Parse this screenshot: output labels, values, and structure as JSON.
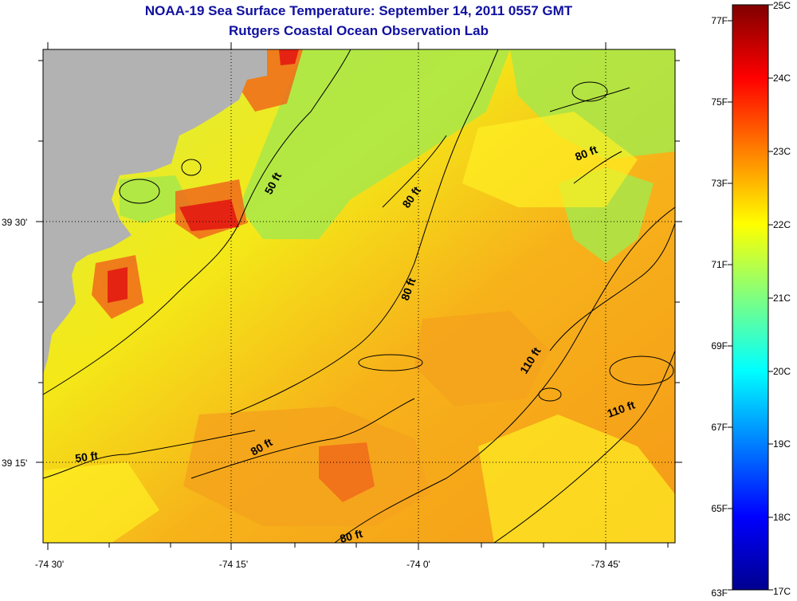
{
  "title": "NOAA-19 Sea Surface Temperature:  September 14, 2011 0557 GMT",
  "subtitle": "Rutgers Coastal Ocean Observation Lab",
  "lon_ticks": [
    "-74 30'",
    "-74 15'",
    "-74 0'",
    "-73 45'"
  ],
  "lat_ticks": [
    "39 30'",
    "39 15'"
  ],
  "contour_labels": [
    "50 ft",
    "80 ft",
    "80 ft",
    "80 ft",
    "110 ft",
    "110 ft",
    "50 ft",
    "80 ft",
    "80 ft"
  ],
  "colorbar": {
    "fahrenheit": [
      "77F",
      "75F",
      "73F",
      "71F",
      "69F",
      "67F",
      "65F",
      "63F"
    ],
    "celsius": [
      "25C",
      "24C",
      "23C",
      "22C",
      "21C",
      "20C",
      "19C",
      "18C",
      "17C"
    ]
  },
  "colors": {
    "title": "#1010a0",
    "land": "#b2b2b2"
  }
}
